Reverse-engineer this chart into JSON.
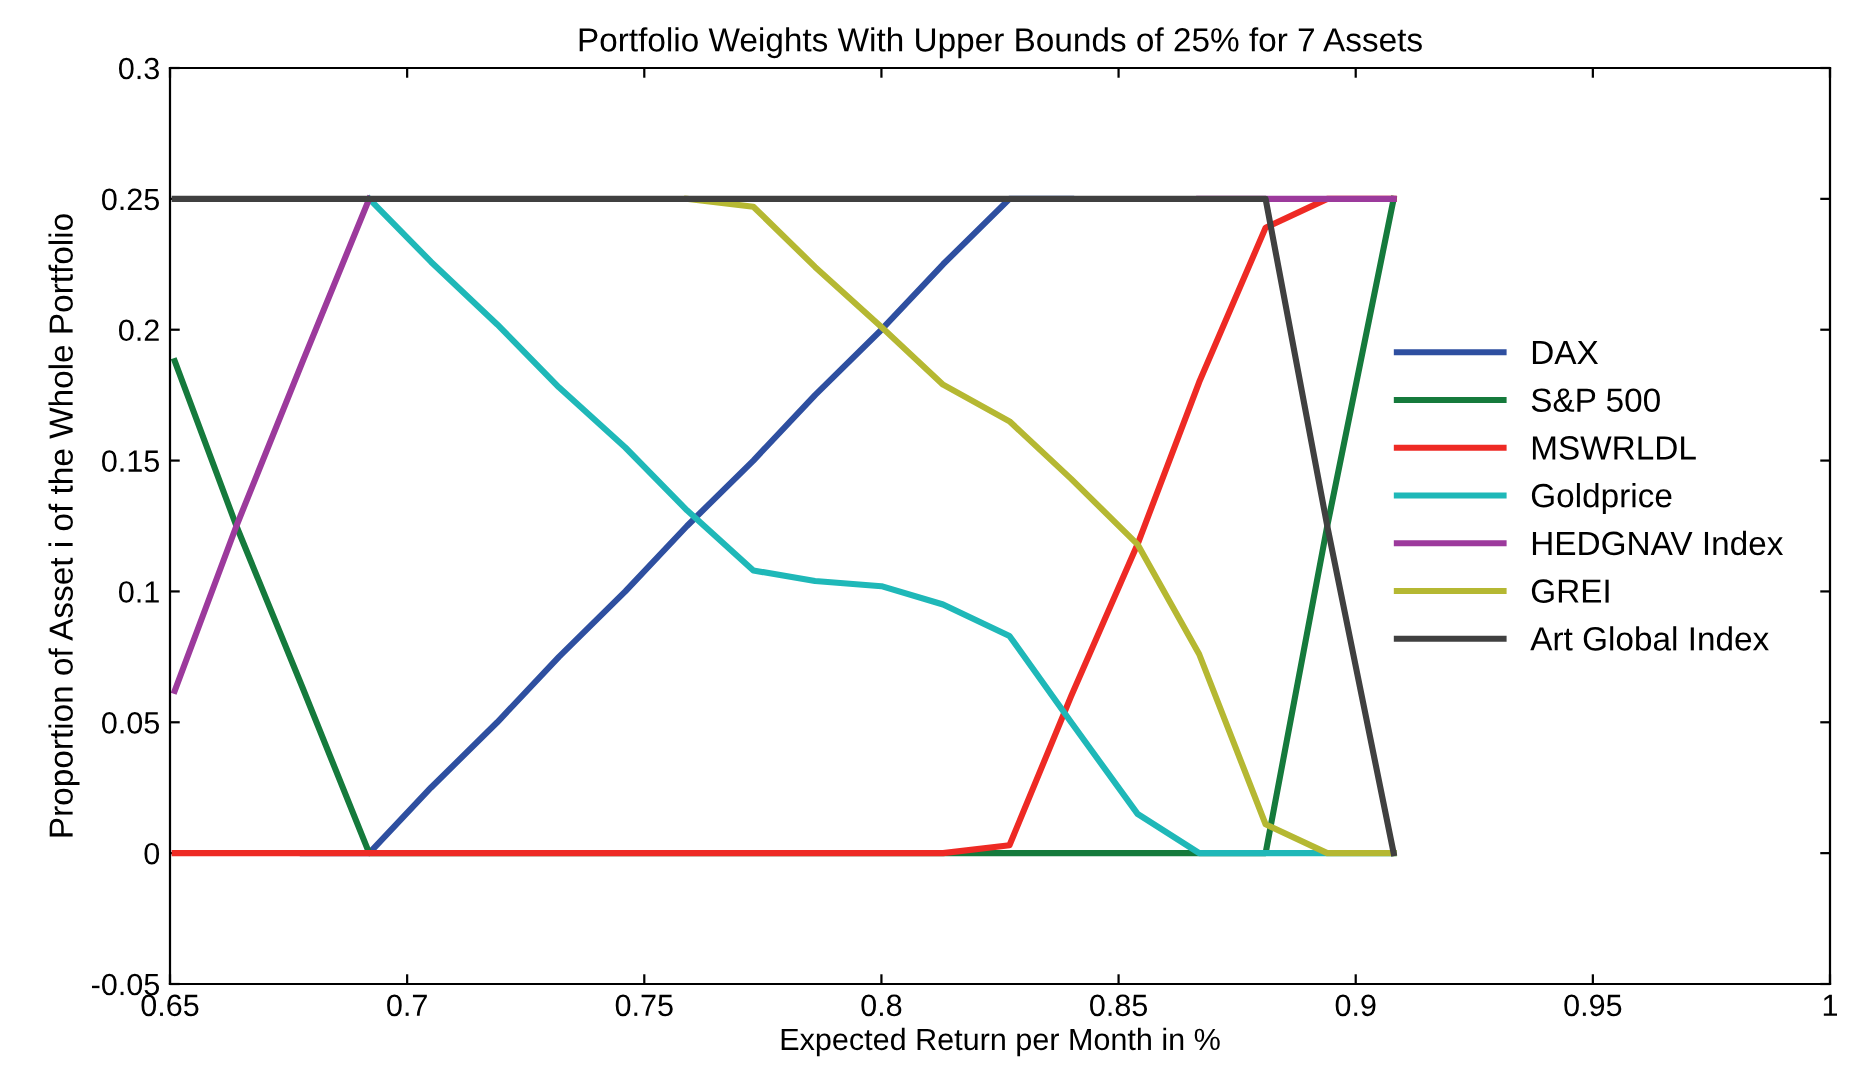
{
  "chart_data": {
    "type": "line",
    "title": "Portfolio Weights With Upper Bounds of 25% for 7 Assets",
    "xlabel": "Expected Return per Month in %",
    "ylabel": "Proportion of Asset i of the Whole Portfolio",
    "x": [
      0.651,
      0.664,
      0.678,
      0.692,
      0.705,
      0.719,
      0.732,
      0.746,
      0.759,
      0.773,
      0.786,
      0.8,
      0.813,
      0.827,
      0.84,
      0.854,
      0.867,
      0.881,
      0.894,
      0.908
    ],
    "series": [
      {
        "name": "DAX",
        "color": "#2e4fa0",
        "values": [
          null,
          null,
          0,
          0,
          0.025,
          0.05,
          0.075,
          0.1,
          0.125,
          0.15,
          0.175,
          0.2,
          0.225,
          0.25,
          0.25,
          null,
          null,
          null,
          null,
          null
        ]
      },
      {
        "name": "S&P 500",
        "color": "#157a3c",
        "values": [
          0.188,
          0.125,
          0.063,
          0,
          0,
          0,
          0,
          0,
          0,
          0,
          0,
          0,
          0,
          0,
          0,
          0,
          0,
          0,
          0.125,
          0.25
        ]
      },
      {
        "name": "MSWRLDL",
        "color": "#ee2a24",
        "values": [
          0,
          0,
          0,
          0,
          0,
          0,
          0,
          0,
          0,
          0,
          0,
          0,
          0,
          0.003,
          0.06,
          0.118,
          0.18,
          0.239,
          0.25,
          0.25
        ]
      },
      {
        "name": "Goldprice",
        "color": "#1fb8b8",
        "values": [
          null,
          null,
          null,
          0.25,
          0.226,
          0.202,
          0.178,
          0.155,
          0.131,
          0.108,
          0.104,
          0.102,
          0.095,
          0.083,
          0.05,
          0.015,
          0,
          0,
          0,
          0
        ]
      },
      {
        "name": "HEDGNAV Index",
        "color": "#9c3a9c",
        "values": [
          0.062,
          0.125,
          0.188,
          0.25,
          null,
          null,
          null,
          null,
          null,
          null,
          null,
          null,
          null,
          null,
          null,
          null,
          0.25,
          0.25,
          0.25,
          0.25
        ]
      },
      {
        "name": "GREI",
        "color": "#b5b832",
        "values": [
          null,
          null,
          null,
          null,
          null,
          null,
          null,
          null,
          0.25,
          0.247,
          0.224,
          0.201,
          0.179,
          0.165,
          0.143,
          0.118,
          0.076,
          0.011,
          0,
          0
        ]
      },
      {
        "name": "Art Global Index",
        "color": "#404040",
        "values": [
          0.25,
          0.25,
          0.25,
          0.25,
          0.25,
          0.25,
          0.25,
          0.25,
          0.25,
          0.25,
          0.25,
          0.25,
          0.25,
          0.25,
          0.25,
          0.25,
          0.25,
          0.25,
          0.125,
          0
        ]
      }
    ],
    "xlim": [
      0.65,
      1
    ],
    "xticks": [
      0.65,
      0.7,
      0.75,
      0.8,
      0.85,
      0.9,
      0.95,
      1
    ],
    "ylim": [
      -0.05,
      0.3
    ],
    "yticks": [
      -0.05,
      0,
      0.05,
      0.1,
      0.15,
      0.2,
      0.25,
      0.3
    ],
    "legend": "right",
    "grid": false,
    "marker": "none",
    "line_style": "solid"
  }
}
